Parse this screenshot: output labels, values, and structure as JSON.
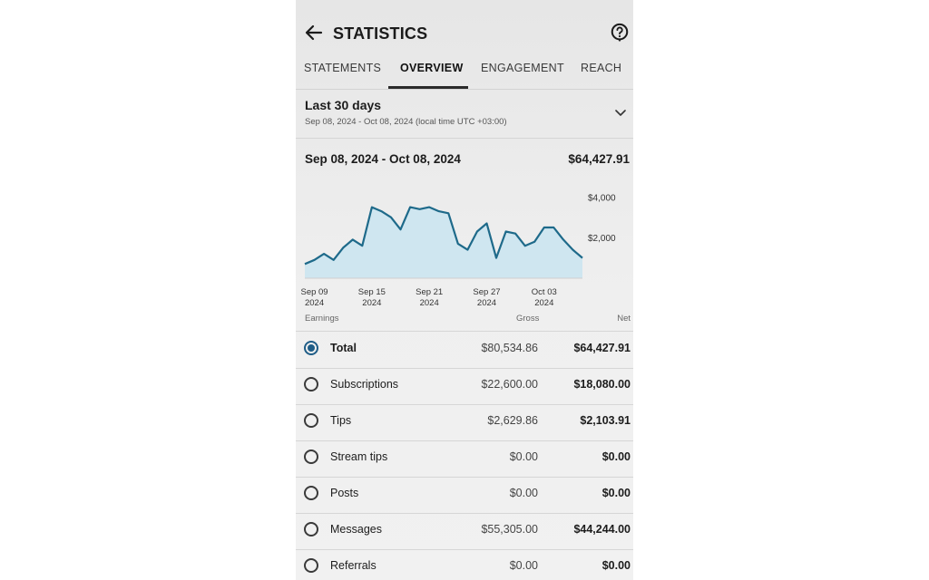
{
  "header": {
    "title": "STATISTICS"
  },
  "tabs": [
    {
      "label": "STATEMENTS",
      "active": false
    },
    {
      "label": "OVERVIEW",
      "active": true
    },
    {
      "label": "ENGAGEMENT",
      "active": false
    },
    {
      "label": "REACH",
      "active": false
    }
  ],
  "range": {
    "title": "Last 30 days",
    "subtitle": "Sep 08, 2024 - Oct 08, 2024 (local time UTC +03:00)"
  },
  "summary": {
    "period": "Sep 08, 2024 - Oct 08, 2024",
    "total": "$64,427.91"
  },
  "chart_data": {
    "type": "area",
    "x_tick_labels": [
      [
        "Sep 09",
        "2024"
      ],
      [
        "Sep 15",
        "2024"
      ],
      [
        "Sep 21",
        "2024"
      ],
      [
        "Sep 27",
        "2024"
      ],
      [
        "Oct 03",
        "2024"
      ]
    ],
    "y_tick_labels": [
      "$4,000",
      "$2,000"
    ],
    "y_ticks": [
      4000,
      2000
    ],
    "ylim": [
      0,
      5000
    ],
    "color": "#1e6a8a",
    "fill": "#cfe6f0",
    "series": [
      {
        "values": [
          700,
          900,
          1200,
          900,
          1500,
          1900,
          1600,
          3500,
          3300,
          3000,
          2400,
          3500,
          3400,
          3500,
          3300,
          3200,
          1700,
          1400,
          2300,
          2700,
          1000,
          2300,
          2200,
          1600,
          1800,
          2500,
          2500,
          1900,
          1400,
          1000
        ]
      }
    ]
  },
  "table": {
    "columns": {
      "earnings": "Earnings",
      "gross": "Gross",
      "net": "Net"
    },
    "rows": [
      {
        "label": "Total",
        "gross": "$80,534.86",
        "net": "$64,427.91",
        "selected": true
      },
      {
        "label": "Subscriptions",
        "gross": "$22,600.00",
        "net": "$18,080.00",
        "selected": false
      },
      {
        "label": "Tips",
        "gross": "$2,629.86",
        "net": "$2,103.91",
        "selected": false
      },
      {
        "label": "Stream tips",
        "gross": "$0.00",
        "net": "$0.00",
        "selected": false
      },
      {
        "label": "Posts",
        "gross": "$0.00",
        "net": "$0.00",
        "selected": false
      },
      {
        "label": "Messages",
        "gross": "$55,305.00",
        "net": "$44,244.00",
        "selected": false
      },
      {
        "label": "Referrals",
        "gross": "$0.00",
        "net": "$0.00",
        "selected": false
      }
    ]
  }
}
